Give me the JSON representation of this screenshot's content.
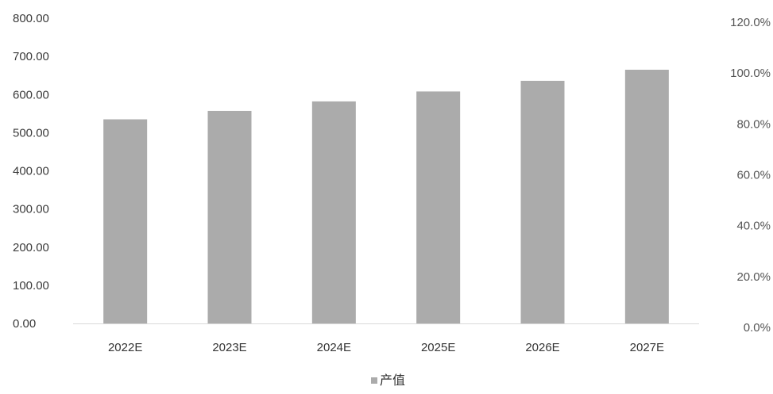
{
  "chart_data": {
    "type": "bar",
    "categories": [
      "2022E",
      "2023E",
      "2024E",
      "2025E",
      "2026E",
      "2027E"
    ],
    "series": [
      {
        "name": "产值",
        "values": [
          535,
          557,
          582,
          608,
          636,
          665
        ],
        "color": "#ababab"
      }
    ],
    "ylim": [
      0,
      800
    ],
    "yticks": [
      "0.00",
      "100.00",
      "200.00",
      "300.00",
      "400.00",
      "500.00",
      "600.00",
      "700.00",
      "800.00"
    ],
    "y2lim": [
      0,
      120
    ],
    "y2ticks": [
      "0.0%",
      "20.0%",
      "40.0%",
      "60.0%",
      "80.0%",
      "100.0%",
      "120.0%"
    ],
    "legend_position": "bottom-center",
    "grid": false,
    "xlabel": "",
    "ylabel": "",
    "title": ""
  }
}
